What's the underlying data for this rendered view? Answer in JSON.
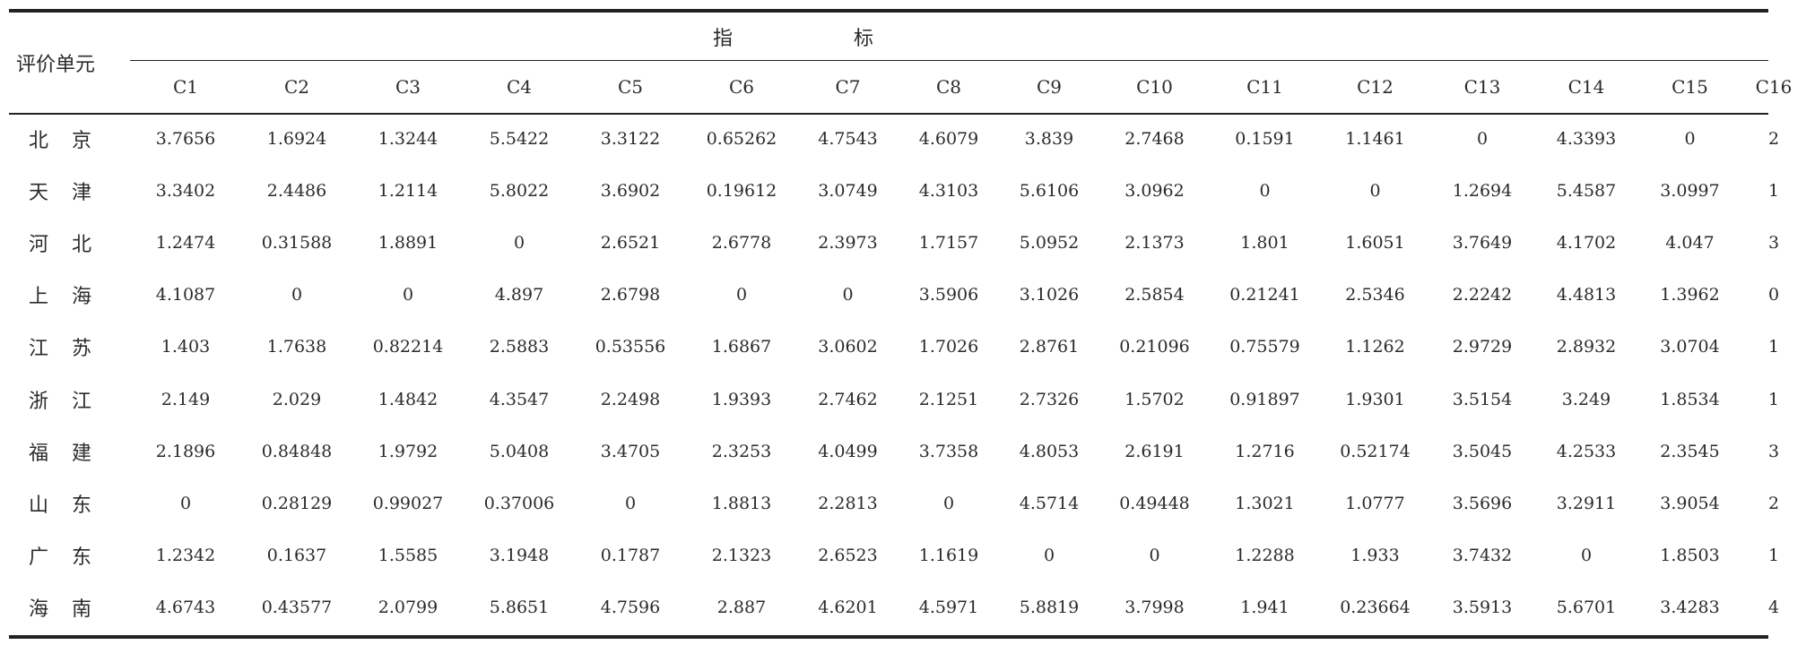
{
  "table": {
    "corner_label": "评价单元",
    "group_label_chars": [
      "指",
      "标"
    ],
    "columns": [
      "C1",
      "C2",
      "C3",
      "C4",
      "C5",
      "C6",
      "C7",
      "C8",
      "C9",
      "C10",
      "C11",
      "C12",
      "C13",
      "C14",
      "C15",
      "C16"
    ],
    "rows": [
      {
        "unit": "北京",
        "values": [
          "3.7656",
          "1.6924",
          "1.3244",
          "5.5422",
          "3.3122",
          "0.65262",
          "4.7543",
          "4.6079",
          "3.839",
          "2.7468",
          "0.1591",
          "1.1461",
          "0",
          "4.3393",
          "0",
          "2"
        ]
      },
      {
        "unit": "天津",
        "values": [
          "3.3402",
          "2.4486",
          "1.2114",
          "5.8022",
          "3.6902",
          "0.19612",
          "3.0749",
          "4.3103",
          "5.6106",
          "3.0962",
          "0",
          "0",
          "1.2694",
          "5.4587",
          "3.0997",
          "1"
        ]
      },
      {
        "unit": "河北",
        "values": [
          "1.2474",
          "0.31588",
          "1.8891",
          "0",
          "2.6521",
          "2.6778",
          "2.3973",
          "1.7157",
          "5.0952",
          "2.1373",
          "1.801",
          "1.6051",
          "3.7649",
          "4.1702",
          "4.047",
          "3"
        ]
      },
      {
        "unit": "上海",
        "values": [
          "4.1087",
          "0",
          "0",
          "4.897",
          "2.6798",
          "0",
          "0",
          "3.5906",
          "3.1026",
          "2.5854",
          "0.21241",
          "2.5346",
          "2.2242",
          "4.4813",
          "1.3962",
          "0"
        ]
      },
      {
        "unit": "江苏",
        "values": [
          "1.403",
          "1.7638",
          "0.82214",
          "2.5883",
          "0.53556",
          "1.6867",
          "3.0602",
          "1.7026",
          "2.8761",
          "0.21096",
          "0.75579",
          "1.1262",
          "2.9729",
          "2.8932",
          "3.0704",
          "1"
        ]
      },
      {
        "unit": "浙江",
        "values": [
          "2.149",
          "2.029",
          "1.4842",
          "4.3547",
          "2.2498",
          "1.9393",
          "2.7462",
          "2.1251",
          "2.7326",
          "1.5702",
          "0.91897",
          "1.9301",
          "3.5154",
          "3.249",
          "1.8534",
          "1"
        ]
      },
      {
        "unit": "福建",
        "values": [
          "2.1896",
          "0.84848",
          "1.9792",
          "5.0408",
          "3.4705",
          "2.3253",
          "4.0499",
          "3.7358",
          "4.8053",
          "2.6191",
          "1.2716",
          "0.52174",
          "3.5045",
          "4.2533",
          "2.3545",
          "3"
        ]
      },
      {
        "unit": "山东",
        "values": [
          "0",
          "0.28129",
          "0.99027",
          "0.37006",
          "0",
          "1.8813",
          "2.2813",
          "0",
          "4.5714",
          "0.49448",
          "1.3021",
          "1.0777",
          "3.5696",
          "3.2911",
          "3.9054",
          "2"
        ]
      },
      {
        "unit": "广东",
        "values": [
          "1.2342",
          "0.1637",
          "1.5585",
          "3.1948",
          "0.1787",
          "2.1323",
          "2.6523",
          "1.1619",
          "0",
          "0",
          "1.2288",
          "1.933",
          "3.7432",
          "0",
          "1.8503",
          "1"
        ]
      },
      {
        "unit": "海南",
        "values": [
          "4.6743",
          "0.43577",
          "2.0799",
          "5.8651",
          "4.7596",
          "2.887",
          "4.6201",
          "4.5971",
          "5.8819",
          "3.7998",
          "1.941",
          "0.23664",
          "3.5913",
          "5.6701",
          "3.4283",
          "4"
        ]
      }
    ]
  }
}
